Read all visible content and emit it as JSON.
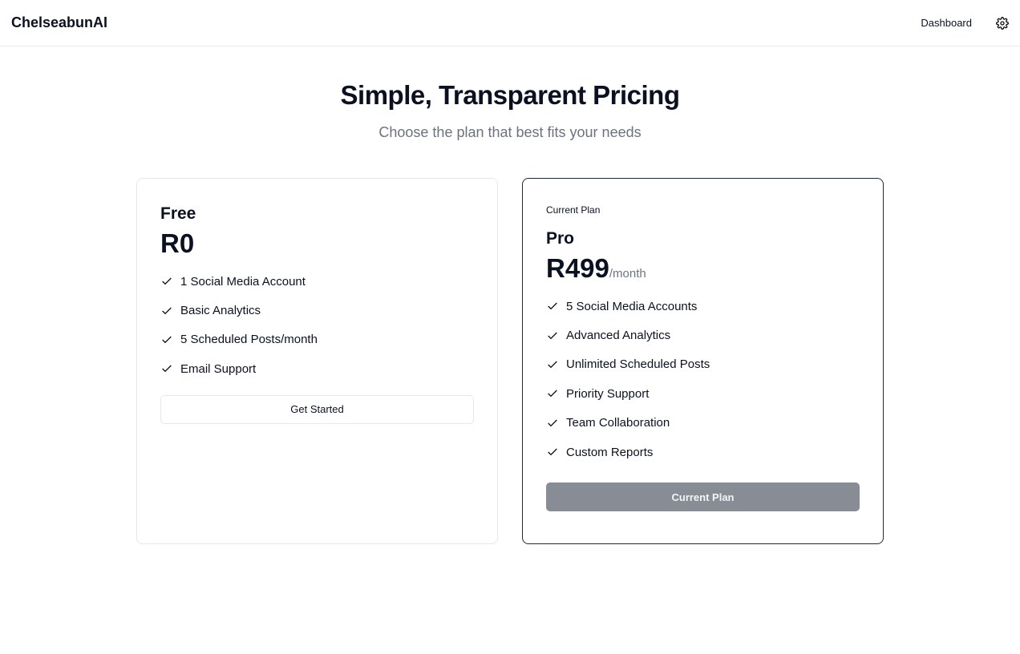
{
  "header": {
    "brand": "ChelseabunAI",
    "dashboard_link": "Dashboard",
    "settings_icon": "gear-icon"
  },
  "hero": {
    "title": "Simple, Transparent Pricing",
    "subtitle": "Choose the plan that best fits your needs"
  },
  "plans": [
    {
      "name": "Free",
      "price": "R0",
      "features": [
        "1 Social Media Account",
        "Basic Analytics",
        "5 Scheduled Posts/month",
        "Email Support"
      ],
      "button": "Get Started"
    },
    {
      "badge": "Current Plan",
      "name": "Pro",
      "price": "R499",
      "period": "/month",
      "features": [
        "5 Social Media Accounts",
        "Advanced Analytics",
        "Unlimited Scheduled Posts",
        "Priority Support",
        "Team Collaboration",
        "Custom Reports"
      ],
      "button": "Current Plan",
      "button_disabled": true
    }
  ]
}
